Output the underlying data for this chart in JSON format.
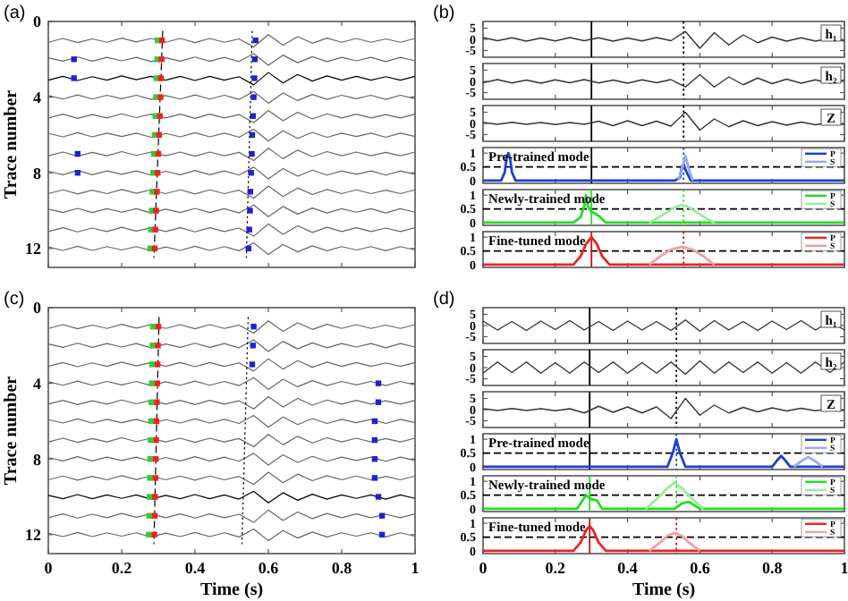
{
  "chart_data": [
    {
      "type": "line",
      "title": "(a)",
      "ylabel": "Trace number",
      "xlim": [
        0,
        1
      ],
      "xticks": [
        0,
        0.2,
        0.4,
        0.6,
        0.8,
        1
      ],
      "ylim": [
        13,
        0
      ],
      "yticks": [
        0,
        4,
        8,
        12
      ],
      "tick_labels": "y",
      "x": [
        0,
        0.04,
        0.08,
        0.12,
        0.16,
        0.2,
        0.24,
        0.28,
        0.32,
        0.36,
        0.4,
        0.44,
        0.48,
        0.52,
        0.56,
        0.6,
        0.64,
        0.68,
        0.72,
        0.76,
        0.8,
        0.84,
        0.88,
        0.92,
        0.96,
        1
      ],
      "series": [
        {
          "color": "#666666",
          "values": [
            1.1,
            0.9,
            1.12,
            0.92,
            1.1,
            0.88,
            1.08,
            0.9,
            1.1,
            0.9,
            1.12,
            0.9,
            1.1,
            0.92,
            1.35,
            0.7,
            1.25,
            0.8,
            1.15,
            0.88,
            1.1,
            0.9,
            1.1,
            0.92,
            1.1,
            0.9
          ]
        },
        {
          "color": "#666666",
          "values": [
            1.92,
            2.1,
            1.88,
            2.1,
            1.9,
            2.08,
            1.9,
            2.12,
            1.92,
            2.1,
            1.88,
            2.1,
            1.9,
            2.12,
            1.7,
            2.32,
            1.78,
            2.18,
            1.86,
            2.12,
            1.9,
            2.08,
            1.9,
            2.12,
            1.9,
            2.08
          ]
        },
        {
          "color": "#000000",
          "values": [
            3.1,
            2.9,
            3.12,
            2.92,
            3.1,
            2.88,
            3.08,
            2.9,
            3.1,
            2.9,
            3.12,
            2.9,
            3.1,
            2.92,
            3.35,
            2.7,
            3.25,
            2.8,
            3.15,
            2.88,
            3.1,
            2.9,
            3.1,
            2.92,
            3.1,
            2.9
          ]
        },
        {
          "color": "#666666",
          "values": [
            3.92,
            4.1,
            3.88,
            4.1,
            3.9,
            4.08,
            3.9,
            4.12,
            3.92,
            4.1,
            3.88,
            4.1,
            3.9,
            4.12,
            3.7,
            4.32,
            3.78,
            4.18,
            3.86,
            4.12,
            3.9,
            4.08,
            3.9,
            4.12,
            3.9,
            4.08
          ]
        },
        {
          "color": "#666666",
          "values": [
            5.1,
            4.9,
            5.12,
            4.92,
            5.1,
            4.88,
            5.08,
            4.9,
            5.1,
            4.9,
            5.12,
            4.9,
            5.1,
            4.92,
            5.35,
            4.7,
            5.25,
            4.8,
            5.15,
            4.88,
            5.1,
            4.9,
            5.1,
            4.92,
            5.1,
            4.9
          ]
        },
        {
          "color": "#666666",
          "values": [
            5.92,
            6.1,
            5.88,
            6.1,
            5.9,
            6.08,
            5.9,
            6.12,
            5.92,
            6.1,
            5.88,
            6.1,
            5.9,
            6.12,
            5.7,
            6.32,
            5.78,
            6.18,
            5.86,
            6.12,
            5.9,
            6.08,
            5.9,
            6.12,
            5.9,
            6.08
          ]
        },
        {
          "color": "#666666",
          "values": [
            7.1,
            6.9,
            7.12,
            6.92,
            7.1,
            6.88,
            7.08,
            6.9,
            7.1,
            6.9,
            7.12,
            6.9,
            7.1,
            6.92,
            7.35,
            6.7,
            7.25,
            6.8,
            7.15,
            6.88,
            7.1,
            6.9,
            7.1,
            6.92,
            7.1,
            6.9
          ]
        },
        {
          "color": "#666666",
          "values": [
            7.92,
            8.1,
            7.88,
            8.1,
            7.9,
            8.08,
            7.9,
            8.12,
            7.92,
            8.1,
            7.88,
            8.1,
            7.9,
            8.12,
            7.7,
            8.32,
            7.78,
            8.18,
            7.86,
            8.12,
            7.9,
            8.08,
            7.9,
            8.12,
            7.9,
            8.08
          ]
        },
        {
          "color": "#666666",
          "values": [
            9.1,
            8.9,
            9.12,
            8.92,
            9.1,
            8.88,
            9.08,
            8.9,
            9.1,
            8.9,
            9.12,
            8.9,
            9.1,
            8.92,
            9.35,
            8.7,
            9.25,
            8.8,
            9.15,
            8.88,
            9.1,
            8.9,
            9.1,
            8.92,
            9.1,
            8.9
          ]
        },
        {
          "color": "#666666",
          "values": [
            9.92,
            10.1,
            9.88,
            10.1,
            9.9,
            10.08,
            9.9,
            10.12,
            9.92,
            10.1,
            9.88,
            10.1,
            9.9,
            10.12,
            9.7,
            10.32,
            9.78,
            10.18,
            9.86,
            10.12,
            9.9,
            10.08,
            9.9,
            10.12,
            9.9,
            10.08
          ]
        },
        {
          "color": "#666666",
          "values": [
            11.1,
            10.9,
            11.12,
            10.92,
            11.1,
            10.88,
            11.08,
            10.9,
            11.1,
            10.9,
            11.12,
            10.9,
            11.1,
            10.92,
            11.35,
            10.7,
            11.25,
            10.8,
            11.15,
            10.88,
            11.1,
            10.9,
            11.1,
            10.92,
            11.1,
            10.9
          ]
        },
        {
          "color": "#666666",
          "values": [
            11.92,
            12.1,
            11.88,
            12.1,
            11.9,
            12.08,
            11.9,
            12.12,
            11.92,
            12.1,
            11.88,
            12.1,
            11.9,
            12.12,
            11.7,
            12.32,
            11.78,
            12.18,
            11.86,
            12.12,
            11.9,
            12.08,
            11.9,
            12.12,
            11.9,
            12.08
          ]
        },
        {
          "type": "line",
          "color": "#000000",
          "line_style": "dashed",
          "x": [
            0.312,
            0.288
          ],
          "values": [
            0.5,
            12.5
          ]
        },
        {
          "type": "line",
          "color": "#000000",
          "line_style": "dotted",
          "x": [
            0.556,
            0.54
          ],
          "values": [
            0.5,
            12.5
          ]
        },
        {
          "type": "scatter",
          "marker": "square",
          "color": "#33cc33",
          "x": [
            0.298,
            0.297,
            0.295,
            0.294,
            0.292,
            0.29,
            0.288,
            0.286,
            0.284,
            0.282,
            0.28,
            0.278
          ],
          "values": [
            1,
            2,
            3,
            4,
            5,
            6,
            7,
            8,
            9,
            10,
            11,
            12
          ]
        },
        {
          "type": "scatter",
          "marker": "square",
          "color": "#ee2222",
          "x": [
            0.31,
            0.309,
            0.307,
            0.306,
            0.304,
            0.302,
            0.3,
            0.298,
            0.296,
            0.294,
            0.292,
            0.29
          ],
          "values": [
            1,
            2,
            3,
            4,
            5,
            6,
            7,
            8,
            9,
            10,
            11,
            12
          ]
        },
        {
          "type": "scatter",
          "marker": "square",
          "color": "#2222cc",
          "x": [
            0.565,
            0.563,
            0.562,
            0.56,
            0.558,
            0.556,
            0.555,
            0.553,
            0.551,
            0.55,
            0.548,
            0.546,
            0.07,
            0.07,
            0.08,
            0.08
          ],
          "values": [
            1,
            2,
            3,
            4,
            5,
            6,
            7,
            8,
            9,
            10,
            11,
            12,
            2,
            3,
            7,
            8
          ]
        }
      ]
    },
    {
      "type": "line",
      "ylim": [
        -8,
        8
      ],
      "yticks": [
        -5,
        0,
        5
      ],
      "xlim": [
        0,
        1
      ],
      "xticks": [
        0,
        0.2,
        0.4,
        0.6,
        0.8,
        1
      ],
      "tick_labels": "y",
      "title": "(b)",
      "annotations": [
        "h₁"
      ],
      "x": [
        0,
        0.04,
        0.08,
        0.12,
        0.16,
        0.2,
        0.24,
        0.28,
        0.32,
        0.36,
        0.4,
        0.44,
        0.48,
        0.52,
        0.56,
        0.6,
        0.64,
        0.68,
        0.72,
        0.76,
        0.8,
        0.84,
        0.88,
        0.92,
        0.96,
        1
      ],
      "ref_lines": [
        {
          "axis": "x",
          "value": 0.3,
          "color": "#000000",
          "line_style": "solid"
        },
        {
          "axis": "x",
          "value": 0.555,
          "color": "#000000",
          "line_style": "dotted"
        }
      ],
      "series": [
        {
          "color": "#333333",
          "values": [
            0.8,
            -0.6,
            0.7,
            -0.8,
            0.6,
            -0.7,
            0.8,
            -0.6,
            0.7,
            -0.8,
            0.6,
            -0.7,
            0.8,
            -0.6,
            3.5,
            -4,
            3,
            -2.5,
            2,
            -1.5,
            1,
            -0.8,
            0.7,
            -0.8,
            0.6,
            -0.7
          ]
        }
      ]
    },
    {
      "type": "line",
      "ylim": [
        -8,
        8
      ],
      "yticks": [
        -5,
        0,
        5
      ],
      "xlim": [
        0,
        1
      ],
      "xticks": [
        0,
        0.2,
        0.4,
        0.6,
        0.8,
        1
      ],
      "tick_labels": "y",
      "annotations": [
        "h₂"
      ],
      "x": [
        0,
        0.04,
        0.08,
        0.12,
        0.16,
        0.2,
        0.24,
        0.28,
        0.32,
        0.36,
        0.4,
        0.44,
        0.48,
        0.52,
        0.56,
        0.6,
        0.64,
        0.68,
        0.72,
        0.76,
        0.8,
        0.84,
        0.88,
        0.92,
        0.96,
        1
      ],
      "ref_lines": [
        {
          "axis": "x",
          "value": 0.3,
          "color": "#000000",
          "line_style": "solid"
        },
        {
          "axis": "x",
          "value": 0.555,
          "color": "#000000",
          "line_style": "dotted"
        }
      ],
      "series": [
        {
          "color": "#333333",
          "values": [
            -0.6,
            0.8,
            -0.7,
            0.6,
            -0.8,
            0.7,
            -0.6,
            0.8,
            -0.7,
            0.6,
            -0.8,
            0.7,
            -0.6,
            0.8,
            -2.5,
            3,
            -2.5,
            2,
            -1.5,
            1.5,
            -1,
            1,
            -0.8,
            0.7,
            -0.8,
            0.6
          ]
        }
      ]
    },
    {
      "type": "line",
      "ylim": [
        -8,
        8
      ],
      "yticks": [
        -5,
        0,
        5
      ],
      "xlim": [
        0,
        1
      ],
      "xticks": [
        0,
        0.2,
        0.4,
        0.6,
        0.8,
        1
      ],
      "tick_labels": "y",
      "annotations": [
        "Z"
      ],
      "x": [
        0,
        0.04,
        0.08,
        0.12,
        0.16,
        0.2,
        0.24,
        0.28,
        0.32,
        0.36,
        0.4,
        0.44,
        0.48,
        0.52,
        0.56,
        0.6,
        0.64,
        0.68,
        0.72,
        0.76,
        0.8,
        0.84,
        0.88,
        0.92,
        0.96,
        1
      ],
      "ref_lines": [
        {
          "axis": "x",
          "value": 0.3,
          "color": "#000000",
          "line_style": "solid"
        },
        {
          "axis": "x",
          "value": 0.555,
          "color": "#000000",
          "line_style": "dotted"
        }
      ],
      "series": [
        {
          "color": "#333333",
          "values": [
            0.4,
            -0.4,
            0.5,
            -0.4,
            0.4,
            -0.5,
            0.4,
            -0.4,
            1,
            -1,
            1.2,
            -1,
            1,
            -1.2,
            5,
            -3,
            2,
            -1.5,
            1.2,
            -1,
            0.8,
            -0.8,
            0.6,
            -0.6,
            0.5,
            -0.5
          ]
        }
      ]
    },
    {
      "type": "line",
      "ylim": [
        -0.1,
        1.2
      ],
      "yticks": [
        0,
        0.5,
        1
      ],
      "xlim": [
        0,
        1
      ],
      "xticks": [
        0,
        0.2,
        0.4,
        0.6,
        0.8,
        1
      ],
      "tick_labels": "y",
      "annotations": [
        "Pre-trained mode"
      ],
      "legend": "top right",
      "ref_lines": [
        {
          "axis": "y",
          "value": 0.5,
          "color": "#000000",
          "line_style": "dashed"
        },
        {
          "axis": "x",
          "value": 0.3,
          "color": "#000000",
          "line_style": "solid"
        },
        {
          "axis": "x",
          "value": 0.555,
          "color": "#1f3fd0",
          "line_style": "dotted"
        }
      ],
      "series": [
        {
          "name": "P",
          "color": "#1f3fd0",
          "x": [
            0,
            0.05,
            0.06,
            0.065,
            0.07,
            0.075,
            0.08,
            0.09,
            0.53,
            0.545,
            0.55,
            0.555,
            0.56,
            0.575,
            1
          ],
          "values": [
            0,
            0,
            0.3,
            0.8,
            1,
            0.8,
            0.3,
            0,
            0,
            0.1,
            0.5,
            0.6,
            0.4,
            0,
            0
          ]
        },
        {
          "name": "S",
          "color": "#9aa8f0",
          "x": [
            0.54,
            0.55,
            0.56,
            0.57,
            0.58
          ],
          "values": [
            0,
            0.4,
            0.9,
            0.4,
            0
          ]
        }
      ]
    },
    {
      "type": "line",
      "ylim": [
        -0.1,
        1.2
      ],
      "yticks": [
        0,
        0.5,
        1
      ],
      "xlim": [
        0,
        1
      ],
      "xticks": [
        0,
        0.2,
        0.4,
        0.6,
        0.8,
        1
      ],
      "tick_labels": "y",
      "annotations": [
        "Newly-trained mode"
      ],
      "legend": "top right",
      "ref_lines": [
        {
          "axis": "y",
          "value": 0.5,
          "color": "#000000",
          "line_style": "dashed"
        },
        {
          "axis": "x",
          "value": 0.3,
          "color": "#22dd22",
          "line_style": "solid"
        },
        {
          "axis": "x",
          "value": 0.555,
          "color": "#22dd22",
          "line_style": "dotted"
        }
      ],
      "series": [
        {
          "name": "P",
          "color": "#22dd22",
          "x": [
            0,
            0.25,
            0.27,
            0.28,
            0.285,
            0.29,
            0.3,
            0.32,
            0.34,
            1
          ],
          "values": [
            0,
            0,
            0.2,
            0.6,
            1,
            0.6,
            0.4,
            0.25,
            0,
            0
          ]
        },
        {
          "name": "S",
          "color": "#99ee99",
          "x": [
            0.46,
            0.5,
            0.53,
            0.55,
            0.57,
            0.6,
            0.64
          ],
          "values": [
            0,
            0.3,
            0.55,
            0.65,
            0.55,
            0.3,
            0
          ]
        }
      ]
    },
    {
      "type": "line",
      "ylim": [
        -0.1,
        1.2
      ],
      "yticks": [
        0,
        0.5,
        1
      ],
      "xlim": [
        0,
        1
      ],
      "xticks": [
        0,
        0.2,
        0.4,
        0.6,
        0.8,
        1
      ],
      "tick_labels": "y",
      "annotations": [
        "Fine-tuned mode"
      ],
      "legend": "top right",
      "ref_lines": [
        {
          "axis": "y",
          "value": 0.5,
          "color": "#000000",
          "line_style": "dashed"
        },
        {
          "axis": "x",
          "value": 0.3,
          "color": "#cc1111",
          "line_style": "solid"
        },
        {
          "axis": "x",
          "value": 0.555,
          "color": "#cc1111",
          "line_style": "dotted"
        }
      ],
      "series": [
        {
          "name": "P",
          "color": "#ee2222",
          "x": [
            0,
            0.25,
            0.27,
            0.285,
            0.3,
            0.315,
            0.33,
            0.35,
            1
          ],
          "values": [
            0,
            0,
            0.3,
            0.75,
            1,
            0.75,
            0.3,
            0,
            0
          ]
        },
        {
          "name": "S",
          "color": "#f0a0a0",
          "x": [
            0.46,
            0.49,
            0.52,
            0.55,
            0.58,
            0.61,
            0.64
          ],
          "values": [
            0,
            0.3,
            0.55,
            0.65,
            0.55,
            0.3,
            0
          ]
        }
      ]
    },
    {
      "type": "line",
      "title": "(c)",
      "ylabel": "Trace number",
      "xlabel": "Time (s)",
      "xlim": [
        0,
        1
      ],
      "xticks": [
        0,
        0.2,
        0.4,
        0.6,
        0.8,
        1
      ],
      "ylim": [
        13,
        0
      ],
      "yticks": [
        0,
        4,
        8,
        12
      ],
      "x": [
        0,
        0.04,
        0.08,
        0.12,
        0.16,
        0.2,
        0.24,
        0.28,
        0.32,
        0.36,
        0.4,
        0.44,
        0.48,
        0.52,
        0.56,
        0.6,
        0.64,
        0.68,
        0.72,
        0.76,
        0.8,
        0.84,
        0.88,
        0.92,
        0.96,
        1
      ],
      "series": [
        {
          "color": "#666666",
          "values": [
            1.1,
            0.9,
            1.12,
            0.92,
            1.1,
            0.88,
            1.08,
            0.9,
            1.1,
            0.9,
            1.12,
            0.9,
            1.1,
            0.92,
            1.35,
            0.7,
            1.25,
            0.8,
            1.15,
            0.88,
            1.1,
            0.9,
            1.1,
            0.92,
            1.1,
            0.9
          ]
        },
        {
          "color": "#666666",
          "values": [
            1.92,
            2.1,
            1.88,
            2.1,
            1.9,
            2.08,
            1.9,
            2.12,
            1.92,
            2.1,
            1.88,
            2.1,
            1.9,
            2.12,
            1.7,
            2.32,
            1.78,
            2.18,
            1.86,
            2.12,
            1.9,
            2.08,
            1.9,
            2.12,
            1.9,
            2.08
          ]
        },
        {
          "color": "#666666",
          "values": [
            3.1,
            2.9,
            3.12,
            2.92,
            3.1,
            2.88,
            3.08,
            2.9,
            3.1,
            2.9,
            3.12,
            2.9,
            3.1,
            2.92,
            3.35,
            2.7,
            3.25,
            2.8,
            3.15,
            2.88,
            3.1,
            2.9,
            3.1,
            2.92,
            3.1,
            2.9
          ]
        },
        {
          "color": "#666666",
          "values": [
            3.92,
            4.1,
            3.88,
            4.1,
            3.9,
            4.08,
            3.9,
            4.12,
            3.92,
            4.1,
            3.88,
            4.1,
            3.9,
            4.12,
            3.7,
            4.32,
            3.78,
            4.18,
            3.86,
            4.12,
            3.9,
            4.08,
            3.9,
            4.12,
            3.9,
            4.08
          ]
        },
        {
          "color": "#666666",
          "values": [
            5.1,
            4.9,
            5.12,
            4.92,
            5.1,
            4.88,
            5.08,
            4.9,
            5.1,
            4.9,
            5.12,
            4.9,
            5.1,
            4.92,
            5.35,
            4.7,
            5.25,
            4.8,
            5.15,
            4.88,
            5.1,
            4.9,
            5.1,
            4.92,
            5.1,
            4.9
          ]
        },
        {
          "color": "#666666",
          "values": [
            5.92,
            6.1,
            5.88,
            6.1,
            5.9,
            6.08,
            5.9,
            6.12,
            5.92,
            6.1,
            5.88,
            6.1,
            5.9,
            6.12,
            5.7,
            6.32,
            5.78,
            6.18,
            5.86,
            6.12,
            5.9,
            6.08,
            5.9,
            6.12,
            5.9,
            6.08
          ]
        },
        {
          "color": "#666666",
          "values": [
            7.1,
            6.9,
            7.12,
            6.92,
            7.1,
            6.88,
            7.08,
            6.9,
            7.1,
            6.9,
            7.12,
            6.9,
            7.1,
            6.92,
            7.35,
            6.7,
            7.25,
            6.8,
            7.15,
            6.88,
            7.1,
            6.9,
            7.1,
            6.92,
            7.1,
            6.9
          ]
        },
        {
          "color": "#666666",
          "values": [
            7.92,
            8.1,
            7.88,
            8.1,
            7.9,
            8.08,
            7.9,
            8.12,
            7.92,
            8.1,
            7.88,
            8.1,
            7.9,
            8.12,
            7.7,
            8.32,
            7.78,
            8.18,
            7.86,
            8.12,
            7.9,
            8.08,
            7.9,
            8.12,
            7.9,
            8.08
          ]
        },
        {
          "color": "#666666",
          "values": [
            9.1,
            8.9,
            9.12,
            8.92,
            9.1,
            8.88,
            9.08,
            8.9,
            9.1,
            8.9,
            9.12,
            8.9,
            9.1,
            8.92,
            9.35,
            8.7,
            9.25,
            8.8,
            9.15,
            8.88,
            9.1,
            8.9,
            9.1,
            8.92,
            9.1,
            8.9
          ]
        },
        {
          "color": "#000000",
          "values": [
            9.92,
            10.1,
            9.88,
            10.1,
            9.9,
            10.08,
            9.9,
            10.12,
            9.92,
            10.1,
            9.88,
            10.1,
            9.9,
            10.12,
            9.7,
            10.32,
            9.78,
            10.18,
            9.86,
            10.12,
            9.9,
            10.08,
            9.9,
            10.12,
            9.9,
            10.08
          ]
        },
        {
          "color": "#666666",
          "values": [
            11.1,
            10.9,
            11.12,
            10.92,
            11.1,
            10.88,
            11.08,
            10.9,
            11.1,
            10.9,
            11.12,
            10.9,
            11.1,
            10.92,
            11.35,
            10.7,
            11.25,
            10.8,
            11.15,
            10.88,
            11.1,
            10.9,
            11.1,
            10.92,
            11.1,
            10.9
          ]
        },
        {
          "color": "#666666",
          "values": [
            11.92,
            12.1,
            11.88,
            12.1,
            11.9,
            12.08,
            11.9,
            12.12,
            11.92,
            12.1,
            11.88,
            12.1,
            11.9,
            12.12,
            11.7,
            12.32,
            11.78,
            12.18,
            11.86,
            12.12,
            11.9,
            12.08,
            11.9,
            12.12,
            11.9,
            12.08
          ]
        },
        {
          "type": "line",
          "color": "#000000",
          "line_style": "dashed",
          "x": [
            0.302,
            0.288
          ],
          "values": [
            0.5,
            12.5
          ]
        },
        {
          "type": "line",
          "color": "#000000",
          "line_style": "dotted",
          "x": [
            0.545,
            0.528
          ],
          "values": [
            0.5,
            12.5
          ]
        },
        {
          "type": "scatter",
          "marker": "square",
          "color": "#33cc33",
          "x": [
            0.285,
            0.284,
            0.283,
            0.282,
            0.281,
            0.28,
            0.279,
            0.278,
            0.277,
            0.276,
            0.275,
            0.274
          ],
          "values": [
            1,
            2,
            3,
            4,
            5,
            6,
            7,
            8,
            9,
            10,
            11,
            12
          ]
        },
        {
          "type": "scatter",
          "marker": "square",
          "color": "#ee2222",
          "x": [
            0.3,
            0.299,
            0.298,
            0.297,
            0.296,
            0.295,
            0.294,
            0.293,
            0.292,
            0.291,
            0.29,
            0.289
          ],
          "values": [
            1,
            2,
            3,
            4,
            5,
            6,
            7,
            8,
            9,
            10,
            11,
            12
          ]
        },
        {
          "type": "scatter",
          "marker": "square",
          "color": "#2222cc",
          "x": [
            0.56,
            0.558,
            0.556,
            0.9,
            0.9,
            0.89,
            0.89,
            0.89,
            0.89,
            0.9,
            0.91,
            0.91
          ],
          "values": [
            1,
            2,
            3,
            4,
            5,
            6,
            7,
            8,
            9,
            10,
            11,
            12
          ]
        }
      ]
    },
    {
      "type": "line",
      "ylim": [
        -8,
        8
      ],
      "yticks": [
        -5,
        0,
        5
      ],
      "xlim": [
        0,
        1
      ],
      "xticks": [
        0,
        0.2,
        0.4,
        0.6,
        0.8,
        1
      ],
      "tick_labels": "y",
      "title": "(d)",
      "annotations": [
        "h₁"
      ],
      "x": [
        0,
        0.04,
        0.08,
        0.12,
        0.16,
        0.2,
        0.24,
        0.28,
        0.32,
        0.36,
        0.4,
        0.44,
        0.48,
        0.52,
        0.56,
        0.6,
        0.64,
        0.68,
        0.72,
        0.76,
        0.8,
        0.84,
        0.88,
        0.92,
        0.96,
        1
      ],
      "ref_lines": [
        {
          "axis": "x",
          "value": 0.295,
          "color": "#000000",
          "line_style": "solid"
        },
        {
          "axis": "x",
          "value": 0.535,
          "color": "#000000",
          "line_style": "dotted"
        }
      ],
      "series": [
        {
          "color": "#333333",
          "values": [
            2,
            -2,
            1.8,
            -2.2,
            2,
            -1.8,
            2.2,
            -2,
            1.8,
            -2.2,
            2,
            -2,
            1.8,
            -2.2,
            2.5,
            -2.5,
            2.2,
            -2,
            1.8,
            -2.2,
            2,
            -1.8,
            2.2,
            -2,
            1.8,
            -2
          ]
        }
      ]
    },
    {
      "type": "line",
      "ylim": [
        -8,
        8
      ],
      "yticks": [
        -5,
        0,
        5
      ],
      "xlim": [
        0,
        1
      ],
      "xticks": [
        0,
        0.2,
        0.4,
        0.6,
        0.8,
        1
      ],
      "tick_labels": "y",
      "annotations": [
        "h₂"
      ],
      "x": [
        0,
        0.04,
        0.08,
        0.12,
        0.16,
        0.2,
        0.24,
        0.28,
        0.32,
        0.36,
        0.4,
        0.44,
        0.48,
        0.52,
        0.56,
        0.6,
        0.64,
        0.68,
        0.72,
        0.76,
        0.8,
        0.84,
        0.88,
        0.92,
        0.96,
        1
      ],
      "ref_lines": [
        {
          "axis": "x",
          "value": 0.295,
          "color": "#000000",
          "line_style": "solid"
        },
        {
          "axis": "x",
          "value": 0.535,
          "color": "#000000",
          "line_style": "dotted"
        }
      ],
      "series": [
        {
          "color": "#333333",
          "values": [
            -2.5,
            2.5,
            -2.2,
            2.5,
            -2.5,
            2.2,
            -2.5,
            2.5,
            -2.2,
            2.5,
            -2.5,
            2.2,
            -2.5,
            2.5,
            -3,
            3,
            -2.5,
            2.5,
            -2.2,
            2.5,
            -2.5,
            2.2,
            -2.5,
            2.5,
            -2.2,
            2.5
          ]
        }
      ]
    },
    {
      "type": "line",
      "ylim": [
        -8,
        8
      ],
      "yticks": [
        -5,
        0,
        5
      ],
      "xlim": [
        0,
        1
      ],
      "xticks": [
        0,
        0.2,
        0.4,
        0.6,
        0.8,
        1
      ],
      "tick_labels": "y",
      "annotations": [
        "Z"
      ],
      "x": [
        0,
        0.04,
        0.08,
        0.12,
        0.16,
        0.2,
        0.24,
        0.28,
        0.32,
        0.36,
        0.4,
        0.44,
        0.48,
        0.52,
        0.56,
        0.6,
        0.64,
        0.68,
        0.72,
        0.76,
        0.8,
        0.84,
        0.88,
        0.92,
        0.96,
        1
      ],
      "ref_lines": [
        {
          "axis": "x",
          "value": 0.295,
          "color": "#000000",
          "line_style": "solid"
        },
        {
          "axis": "x",
          "value": 0.535,
          "color": "#000000",
          "line_style": "dotted"
        }
      ],
      "series": [
        {
          "color": "#333333",
          "values": [
            0.4,
            -0.4,
            0.5,
            -0.4,
            0.4,
            -0.5,
            0.4,
            -1.5,
            1.5,
            -1.2,
            1.2,
            -1.5,
            1.2,
            -4,
            5,
            -2.5,
            2,
            -1.5,
            1,
            -1,
            0.8,
            -0.6,
            0.6,
            -0.5,
            0.5,
            -0.4
          ]
        }
      ]
    },
    {
      "type": "line",
      "ylim": [
        -0.1,
        1.2
      ],
      "yticks": [
        0,
        0.5,
        1
      ],
      "xlim": [
        0,
        1
      ],
      "xticks": [
        0,
        0.2,
        0.4,
        0.6,
        0.8,
        1
      ],
      "tick_labels": "y",
      "annotations": [
        "Pre-trained mode"
      ],
      "legend": "top right",
      "ref_lines": [
        {
          "axis": "y",
          "value": 0.5,
          "color": "#000000",
          "line_style": "dashed"
        },
        {
          "axis": "x",
          "value": 0.295,
          "color": "#000000",
          "line_style": "solid"
        },
        {
          "axis": "x",
          "value": 0.535,
          "color": "#1f3fd0",
          "line_style": "dotted"
        }
      ],
      "series": [
        {
          "name": "P",
          "color": "#1f3fd0",
          "x": [
            0,
            0.51,
            0.525,
            0.535,
            0.545,
            0.56,
            0.8,
            0.815,
            0.825,
            0.835,
            0.85,
            1
          ],
          "values": [
            0,
            0,
            0.5,
            1,
            0.5,
            0,
            0,
            0.25,
            0.4,
            0.25,
            0,
            0
          ]
        },
        {
          "name": "S",
          "color": "#9aa8f0",
          "x": [
            0.86,
            0.88,
            0.9,
            0.92,
            0.94
          ],
          "values": [
            0,
            0.2,
            0.35,
            0.2,
            0
          ]
        }
      ]
    },
    {
      "type": "line",
      "ylim": [
        -0.1,
        1.2
      ],
      "yticks": [
        0,
        0.5,
        1
      ],
      "xlim": [
        0,
        1
      ],
      "xticks": [
        0,
        0.2,
        0.4,
        0.6,
        0.8,
        1
      ],
      "tick_labels": "y",
      "annotations": [
        "Newly-trained mode"
      ],
      "legend": "top right",
      "ref_lines": [
        {
          "axis": "y",
          "value": 0.5,
          "color": "#000000",
          "line_style": "dashed"
        },
        {
          "axis": "x",
          "value": 0.295,
          "color": "#22dd22",
          "line_style": "solid"
        },
        {
          "axis": "x",
          "value": 0.535,
          "color": "#22dd22",
          "line_style": "dotted"
        }
      ],
      "series": [
        {
          "name": "P",
          "color": "#22dd22",
          "x": [
            0,
            0.26,
            0.275,
            0.285,
            0.3,
            0.315,
            0.33,
            0.53,
            0.55,
            0.57,
            0.6,
            1
          ],
          "values": [
            0,
            0,
            0.3,
            0.5,
            0.35,
            0.3,
            0,
            0,
            0.2,
            0.25,
            0,
            0
          ]
        },
        {
          "name": "S",
          "color": "#99ee99",
          "x": [
            0.45,
            0.48,
            0.51,
            0.53,
            0.55,
            0.58,
            0.61
          ],
          "values": [
            0,
            0.35,
            0.75,
            0.95,
            0.75,
            0.35,
            0
          ]
        }
      ]
    },
    {
      "type": "line",
      "ylim": [
        -0.1,
        1.2
      ],
      "yticks": [
        0,
        0.5,
        1
      ],
      "xlim": [
        0,
        1
      ],
      "xticks": [
        0,
        0.2,
        0.4,
        0.6,
        0.8,
        1
      ],
      "xlabel": "Time (s)",
      "annotations": [
        "Fine-tuned mode"
      ],
      "legend": "top right",
      "ref_lines": [
        {
          "axis": "y",
          "value": 0.5,
          "color": "#000000",
          "line_style": "dashed"
        },
        {
          "axis": "x",
          "value": 0.295,
          "color": "#cc1111",
          "line_style": "solid"
        },
        {
          "axis": "x",
          "value": 0.535,
          "color": "#cc1111",
          "line_style": "dotted"
        }
      ],
      "series": [
        {
          "name": "P",
          "color": "#ee2222",
          "x": [
            0,
            0.25,
            0.27,
            0.285,
            0.295,
            0.305,
            0.32,
            0.34,
            1
          ],
          "values": [
            0,
            0,
            0.3,
            0.75,
            0.9,
            0.75,
            0.3,
            0,
            0
          ]
        },
        {
          "name": "S",
          "color": "#f0a0a0",
          "x": [
            0.46,
            0.49,
            0.51,
            0.53,
            0.55,
            0.57,
            0.6
          ],
          "values": [
            0,
            0.3,
            0.55,
            0.65,
            0.55,
            0.3,
            0
          ]
        }
      ]
    }
  ]
}
